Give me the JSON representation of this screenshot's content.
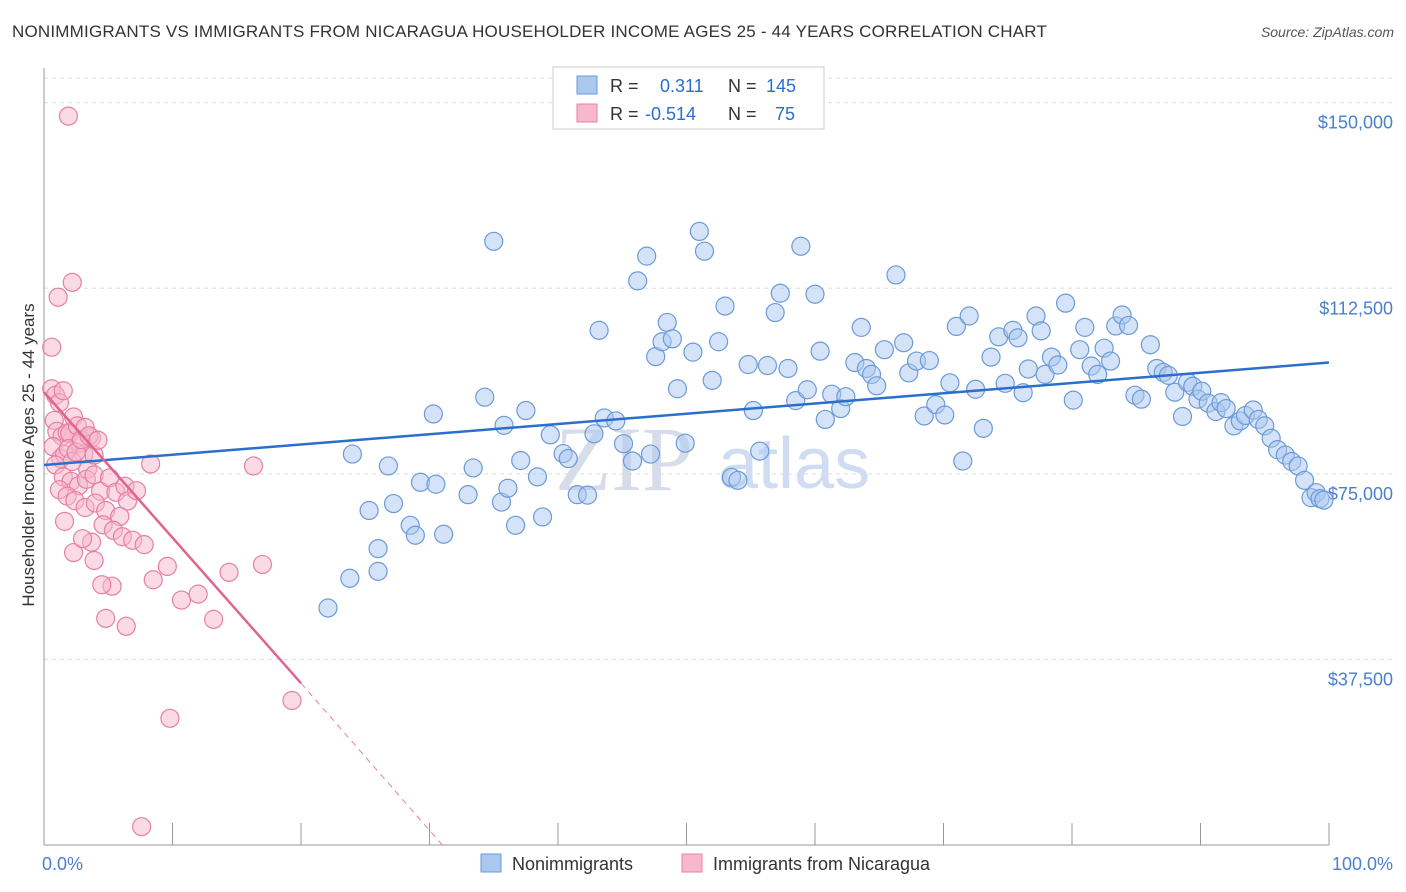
{
  "title": "NONIMMIGRANTS VS IMMIGRANTS FROM NICARAGUA HOUSEHOLDER INCOME AGES 25 - 44 YEARS CORRELATION CHART",
  "source": "Source: ZipAtlas.com",
  "watermark": {
    "zip": "ZIP",
    "atlas": "atlas"
  },
  "colors": {
    "blue_fill": "#a9c8f0",
    "blue_stroke": "#6c9ad8",
    "blue_line": "#2a6fcc",
    "pink_fill": "#f6b8cc",
    "pink_stroke": "#e87fa1",
    "pink_line": "#e0648f",
    "tick_label": "#4a7fcf",
    "grid": "#dddddd"
  },
  "legend": {
    "r_label": "R =",
    "n_label": "N =",
    "rows": [
      {
        "series": "Nonimmigrants",
        "r": "0.311",
        "n": "145"
      },
      {
        "series": "Immigrants from Nicaragua",
        "r": "-0.514",
        "n": "75"
      }
    ]
  },
  "chart_data": {
    "type": "scatter",
    "title": "NONIMMIGRANTS VS IMMIGRANTS FROM NICARAGUA HOUSEHOLDER INCOME AGES 25 - 44 YEARS CORRELATION CHART",
    "xlabel": "",
    "ylabel": "Householder Income Ages 25 - 44 years",
    "xlim": [
      0,
      100
    ],
    "ylim": [
      0,
      155000
    ],
    "x_tick_labels": [
      "0.0%",
      "100.0%"
    ],
    "y_ticks": [
      37500,
      75000,
      112500,
      150000
    ],
    "y_tick_labels": [
      "$37,500",
      "$75,000",
      "$112,500",
      "$150,000"
    ],
    "grid": true,
    "legend_position": "bottom-center",
    "series": [
      {
        "name": "Nonimmigrants",
        "trend": {
          "x": [
            0,
            100
          ],
          "y": [
            76800,
            97500
          ]
        },
        "points": [
          [
            22.1,
            47900
          ],
          [
            23.8,
            53900
          ],
          [
            26.0,
            59900
          ],
          [
            26.0,
            55300
          ],
          [
            25.3,
            67600
          ],
          [
            26.8,
            76600
          ],
          [
            24.0,
            79000
          ],
          [
            27.2,
            69000
          ],
          [
            28.5,
            64600
          ],
          [
            28.9,
            62600
          ],
          [
            29.3,
            73300
          ],
          [
            30.5,
            72900
          ],
          [
            30.3,
            87100
          ],
          [
            31.1,
            62800
          ],
          [
            33.0,
            70800
          ],
          [
            33.4,
            76200
          ],
          [
            34.3,
            90500
          ],
          [
            35.0,
            122000
          ],
          [
            35.6,
            69300
          ],
          [
            35.8,
            84800
          ],
          [
            36.1,
            72100
          ],
          [
            36.7,
            64600
          ],
          [
            37.1,
            77700
          ],
          [
            37.5,
            87800
          ],
          [
            38.4,
            74400
          ],
          [
            38.8,
            66300
          ],
          [
            39.4,
            82900
          ],
          [
            40.4,
            79100
          ],
          [
            40.8,
            78100
          ],
          [
            41.5,
            70800
          ],
          [
            42.3,
            70700
          ],
          [
            42.8,
            83100
          ],
          [
            43.2,
            104000
          ],
          [
            43.6,
            86300
          ],
          [
            44.5,
            85700
          ],
          [
            45.1,
            81100
          ],
          [
            45.8,
            77600
          ],
          [
            46.2,
            114000
          ],
          [
            46.9,
            119000
          ],
          [
            47.2,
            79000
          ],
          [
            47.6,
            98700
          ],
          [
            48.1,
            101700
          ],
          [
            48.5,
            105600
          ],
          [
            48.9,
            102300
          ],
          [
            49.3,
            92200
          ],
          [
            49.9,
            81200
          ],
          [
            50.5,
            99600
          ],
          [
            51.0,
            124000
          ],
          [
            51.4,
            120000
          ],
          [
            52.0,
            93900
          ],
          [
            52.5,
            101700
          ],
          [
            53.0,
            108900
          ],
          [
            53.5,
            74300
          ],
          [
            54.0,
            73700
          ],
          [
            54.8,
            97100
          ],
          [
            55.2,
            87800
          ],
          [
            55.7,
            79600
          ],
          [
            56.3,
            96900
          ],
          [
            56.9,
            107600
          ],
          [
            57.3,
            111500
          ],
          [
            57.9,
            96300
          ],
          [
            58.5,
            89800
          ],
          [
            58.9,
            121000
          ],
          [
            59.4,
            92000
          ],
          [
            60.0,
            111300
          ],
          [
            60.4,
            99800
          ],
          [
            60.8,
            86000
          ],
          [
            61.3,
            91100
          ],
          [
            62.0,
            88200
          ],
          [
            62.4,
            90600
          ],
          [
            63.1,
            97500
          ],
          [
            63.6,
            104600
          ],
          [
            64.0,
            96300
          ],
          [
            64.4,
            95100
          ],
          [
            64.8,
            92800
          ],
          [
            65.4,
            100100
          ],
          [
            66.3,
            115200
          ],
          [
            66.9,
            101500
          ],
          [
            67.3,
            95400
          ],
          [
            67.9,
            97800
          ],
          [
            68.5,
            86700
          ],
          [
            68.9,
            97900
          ],
          [
            69.4,
            89000
          ],
          [
            70.1,
            86900
          ],
          [
            70.5,
            93400
          ],
          [
            71.0,
            104800
          ],
          [
            71.5,
            77600
          ],
          [
            72.0,
            106900
          ],
          [
            72.5,
            92100
          ],
          [
            73.1,
            84200
          ],
          [
            73.7,
            98600
          ],
          [
            74.3,
            102700
          ],
          [
            74.8,
            93300
          ],
          [
            75.4,
            104000
          ],
          [
            75.8,
            102500
          ],
          [
            76.2,
            91400
          ],
          [
            76.6,
            96200
          ],
          [
            77.2,
            106900
          ],
          [
            77.6,
            103900
          ],
          [
            77.9,
            95100
          ],
          [
            78.4,
            98600
          ],
          [
            78.9,
            97000
          ],
          [
            79.5,
            109500
          ],
          [
            80.1,
            89900
          ],
          [
            80.6,
            100100
          ],
          [
            81.0,
            104600
          ],
          [
            81.5,
            96800
          ],
          [
            82.0,
            95100
          ],
          [
            82.5,
            100400
          ],
          [
            83.0,
            97800
          ],
          [
            83.4,
            104900
          ],
          [
            83.9,
            107100
          ],
          [
            84.4,
            105000
          ],
          [
            84.9,
            90900
          ],
          [
            85.4,
            90100
          ],
          [
            86.1,
            101100
          ],
          [
            86.6,
            96300
          ],
          [
            87.1,
            95500
          ],
          [
            87.5,
            94900
          ],
          [
            88.0,
            91500
          ],
          [
            88.6,
            86600
          ],
          [
            89.0,
            93500
          ],
          [
            89.4,
            92700
          ],
          [
            89.8,
            90100
          ],
          [
            90.1,
            91700
          ],
          [
            90.6,
            89300
          ],
          [
            91.2,
            87600
          ],
          [
            91.6,
            89400
          ],
          [
            92.0,
            88200
          ],
          [
            92.6,
            84700
          ],
          [
            93.1,
            85700
          ],
          [
            93.5,
            86800
          ],
          [
            94.1,
            87900
          ],
          [
            94.5,
            86000
          ],
          [
            95.0,
            84700
          ],
          [
            95.5,
            82200
          ],
          [
            96.0,
            79900
          ],
          [
            96.6,
            78800
          ],
          [
            97.1,
            77500
          ],
          [
            97.6,
            76600
          ],
          [
            98.1,
            73700
          ],
          [
            98.6,
            70200
          ],
          [
            99.0,
            71200
          ],
          [
            99.3,
            70000
          ],
          [
            99.6,
            69700
          ]
        ]
      },
      {
        "name": "Immigrants from Nicaragua",
        "trend": {
          "x": [
            0,
            20
          ],
          "y": [
            91500,
            32700
          ]
        },
        "trend_extension": {
          "x": [
            20,
            31
          ],
          "y": [
            32700,
            0
          ]
        },
        "points": [
          [
            1.9,
            147300
          ],
          [
            0.6,
            100600
          ],
          [
            1.1,
            110700
          ],
          [
            2.2,
            113700
          ],
          [
            0.6,
            92200
          ],
          [
            0.9,
            90900
          ],
          [
            1.2,
            89400
          ],
          [
            1.5,
            91800
          ],
          [
            0.8,
            85800
          ],
          [
            1.0,
            83600
          ],
          [
            1.4,
            82600
          ],
          [
            1.8,
            83300
          ],
          [
            2.0,
            83200
          ],
          [
            2.3,
            86500
          ],
          [
            2.6,
            84700
          ],
          [
            2.8,
            81200
          ],
          [
            3.1,
            79000
          ],
          [
            3.4,
            76000
          ],
          [
            3.7,
            82300
          ],
          [
            0.7,
            80500
          ],
          [
            1.3,
            78100
          ],
          [
            1.6,
            78900
          ],
          [
            1.9,
            80100
          ],
          [
            2.2,
            77500
          ],
          [
            2.5,
            79400
          ],
          [
            2.9,
            81900
          ],
          [
            3.2,
            84400
          ],
          [
            3.5,
            82700
          ],
          [
            3.9,
            78800
          ],
          [
            4.2,
            81800
          ],
          [
            0.9,
            76800
          ],
          [
            1.5,
            74400
          ],
          [
            2.1,
            73500
          ],
          [
            2.7,
            72600
          ],
          [
            3.3,
            73900
          ],
          [
            3.9,
            74800
          ],
          [
            4.4,
            71500
          ],
          [
            5.1,
            74200
          ],
          [
            5.6,
            71300
          ],
          [
            6.3,
            72500
          ],
          [
            1.2,
            71800
          ],
          [
            1.8,
            70500
          ],
          [
            2.4,
            69600
          ],
          [
            3.2,
            68200
          ],
          [
            4.0,
            69100
          ],
          [
            4.8,
            67600
          ],
          [
            6.5,
            69500
          ],
          [
            8.3,
            77000
          ],
          [
            7.2,
            71600
          ],
          [
            5.9,
            66400
          ],
          [
            4.6,
            64700
          ],
          [
            5.4,
            63600
          ],
          [
            6.1,
            62300
          ],
          [
            6.9,
            61600
          ],
          [
            7.8,
            60700
          ],
          [
            3.7,
            61200
          ],
          [
            2.3,
            59100
          ],
          [
            8.5,
            53600
          ],
          [
            9.6,
            56300
          ],
          [
            10.7,
            49500
          ],
          [
            12.0,
            50700
          ],
          [
            13.2,
            45600
          ],
          [
            14.4,
            55100
          ],
          [
            16.3,
            76600
          ],
          [
            17.0,
            56700
          ],
          [
            19.3,
            29200
          ],
          [
            9.8,
            25600
          ],
          [
            7.6,
            3700
          ],
          [
            6.4,
            44200
          ],
          [
            4.8,
            45800
          ],
          [
            5.3,
            52300
          ],
          [
            4.5,
            52600
          ],
          [
            3.9,
            57500
          ],
          [
            3.0,
            61900
          ],
          [
            1.6,
            65400
          ]
        ]
      }
    ]
  }
}
